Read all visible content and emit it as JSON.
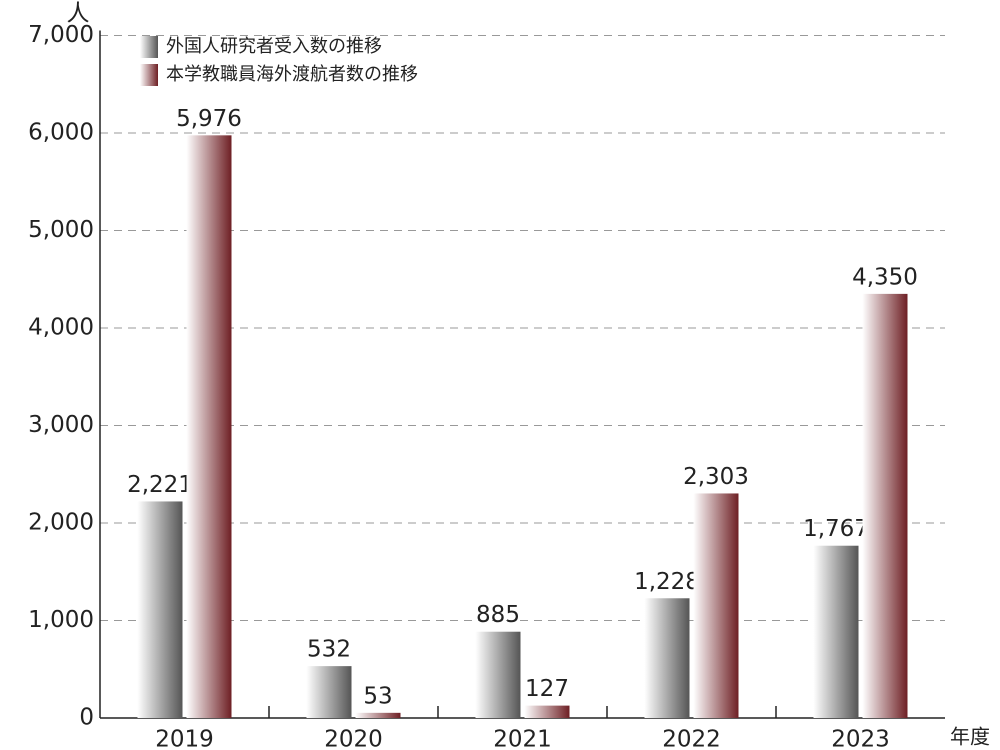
{
  "chart_data": {
    "type": "bar",
    "y_label": "人",
    "x_label": "年度",
    "categories": [
      "2019",
      "2020",
      "2021",
      "2022",
      "2023"
    ],
    "series": [
      {
        "name": "外国人研究者受入数の推移",
        "color": "#555555",
        "values": [
          2221,
          532,
          885,
          1228,
          1767
        ],
        "value_labels": [
          "2,221",
          "532",
          "885",
          "1,228",
          "1,767"
        ]
      },
      {
        "name": "本学教職員海外渡航者数の推移",
        "color": "#6e1f24",
        "values": [
          5976,
          53,
          127,
          2303,
          4350
        ],
        "value_labels": [
          "5,976",
          "53",
          "127",
          "2,303",
          "4,350"
        ]
      }
    ],
    "ylim": [
      0,
      7000
    ],
    "yticks": [
      {
        "value": 0,
        "label": "0"
      },
      {
        "value": 1000,
        "label": "1,000"
      },
      {
        "value": 2000,
        "label": "2,000"
      },
      {
        "value": 3000,
        "label": "3,000"
      },
      {
        "value": 4000,
        "label": "4,000"
      },
      {
        "value": 5000,
        "label": "5,000"
      },
      {
        "value": 6000,
        "label": "6,000"
      },
      {
        "value": 7000,
        "label": "7,000"
      }
    ],
    "grid": true
  }
}
